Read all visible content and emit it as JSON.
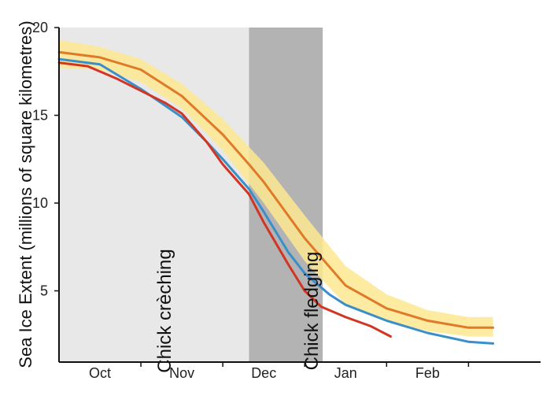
{
  "chart_data": {
    "type": "line",
    "ylabel": "Sea Ice Extent (millions of square kilometres)",
    "ylim": [
      0,
      20
    ],
    "xlim": [
      0,
      5.88
    ],
    "yticks": [
      {
        "value": 5,
        "label": "5"
      },
      {
        "value": 10,
        "label": "10"
      },
      {
        "value": 15,
        "label": "15"
      },
      {
        "value": 20,
        "label": "20"
      }
    ],
    "xticks": [
      {
        "value": 0.5,
        "label": "Oct"
      },
      {
        "value": 1.5,
        "label": "Nov"
      },
      {
        "value": 2.5,
        "label": "Dec"
      },
      {
        "value": 3.5,
        "label": "Jan"
      },
      {
        "value": 4.5,
        "label": "Feb"
      }
    ],
    "periods": [
      {
        "label": "Chick crèching",
        "x_start": 0,
        "x_end": 2.32,
        "color": "#e8e8e8"
      },
      {
        "label": "Chick fledging",
        "x_start": 2.32,
        "x_end": 3.22,
        "color": "#b3b3b3"
      }
    ],
    "band": {
      "color": "#fbe890",
      "x": [
        0,
        0.5,
        1.0,
        1.5,
        2.0,
        2.32,
        2.5,
        3.0,
        3.5,
        4.0,
        4.5,
        5.0,
        5.3
      ],
      "upper": [
        19.3,
        18.9,
        18.2,
        16.8,
        14.8,
        13.2,
        12.3,
        9.3,
        6.4,
        4.8,
        3.9,
        3.5,
        3.5
      ],
      "lower": [
        17.7,
        17.6,
        16.9,
        15.4,
        13.0,
        11.1,
        10.0,
        6.7,
        4.2,
        3.3,
        2.7,
        2.4,
        2.4
      ]
    },
    "series": [
      {
        "color": "#e07a28",
        "x": [
          0,
          0.5,
          1.0,
          1.5,
          2.0,
          2.32,
          2.5,
          3.0,
          3.5,
          4.0,
          4.5,
          5.0,
          5.3
        ],
        "values": [
          18.6,
          18.3,
          17.6,
          16.1,
          13.9,
          12.2,
          11.2,
          8.0,
          5.3,
          4.0,
          3.3,
          2.9,
          2.9
        ]
      },
      {
        "color": "#3a8ec9",
        "x": [
          0,
          0.5,
          1.0,
          1.5,
          1.8,
          2.0,
          2.32,
          2.5,
          2.8,
          3.0,
          3.3,
          3.5,
          4.0,
          4.5,
          5.0,
          5.3
        ],
        "values": [
          18.2,
          17.9,
          16.5,
          14.9,
          13.5,
          12.5,
          10.8,
          9.5,
          7.2,
          6.0,
          4.8,
          4.2,
          3.3,
          2.6,
          2.1,
          2.0
        ]
      },
      {
        "color": "#d13524",
        "x": [
          0,
          0.35,
          0.7,
          1.0,
          1.3,
          1.5,
          1.8,
          2.0,
          2.32,
          2.5,
          2.8,
          3.0,
          3.2,
          3.5,
          3.8,
          4.05
        ],
        "values": [
          18.0,
          17.8,
          17.1,
          16.4,
          15.7,
          15.1,
          13.5,
          12.2,
          10.5,
          8.9,
          6.5,
          5.0,
          4.1,
          3.5,
          3.0,
          2.4
        ]
      }
    ]
  }
}
